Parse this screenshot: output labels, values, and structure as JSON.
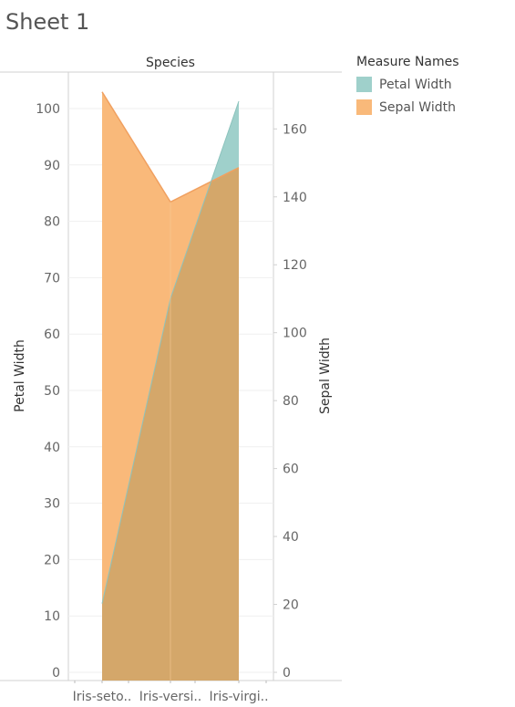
{
  "sheet": {
    "title": "Sheet 1"
  },
  "legend": {
    "title": "Measure Names",
    "items": [
      {
        "label": "Petal Width",
        "color": "#9fd0cb"
      },
      {
        "label": "Sepal Width",
        "color": "#f9b97a"
      }
    ]
  },
  "chart_data": {
    "type": "area",
    "header": "Species",
    "categories": [
      "Iris-seto..",
      "Iris-versi..",
      "Iris-virgi.."
    ],
    "series": [
      {
        "name": "Petal Width",
        "axis": "left",
        "values": [
          12.2,
          66.3,
          101.3
        ],
        "color": "#9fd0cb"
      },
      {
        "name": "Sepal Width",
        "axis": "right",
        "values": [
          170.9,
          138.5,
          148.6
        ],
        "color": "#f9b97a"
      }
    ],
    "overlap_color": "#d4a76a",
    "ylabel": "Petal Width",
    "ylabel_right": "Sepal Width",
    "ylim": [
      0,
      105
    ],
    "ylim_right": [
      0,
      175
    ],
    "yticks": [
      0,
      10,
      20,
      30,
      40,
      50,
      60,
      70,
      80,
      90,
      100
    ],
    "yticks_right": [
      0,
      20,
      40,
      60,
      80,
      100,
      120,
      140,
      160
    ],
    "grid": true
  }
}
